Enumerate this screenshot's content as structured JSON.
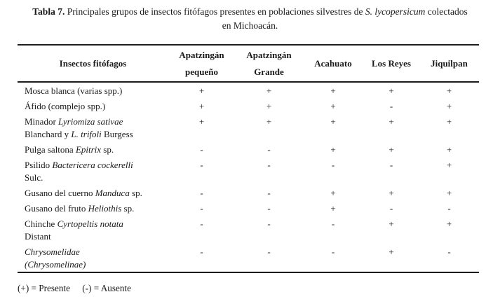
{
  "caption": {
    "line1_segments": [
      {
        "text": "Tabla 7.",
        "bold": true
      },
      {
        "text": " Principales grupos de insectos fitófagos presentes en poblaciones silvestres de "
      },
      {
        "text": "S. lycopersicum",
        "italic": true
      },
      {
        "text": " colectados"
      }
    ],
    "line2": "en Michoacán."
  },
  "table": {
    "insect_column_header": "Insectos fitófagos",
    "site_column_headers": [
      {
        "lines": [
          "Apatzingán",
          "pequeño"
        ]
      },
      {
        "lines": [
          "Apatzingán",
          "Grande"
        ]
      },
      {
        "lines": [
          "Acahuato"
        ]
      },
      {
        "lines": [
          "Los Reyes"
        ]
      },
      {
        "lines": [
          "Jiquilpan"
        ]
      }
    ],
    "rows": [
      {
        "label_segments": [
          {
            "text": "Mosca blanca (varias spp.)"
          }
        ],
        "values": [
          "+",
          "+",
          "+",
          "+",
          "+"
        ]
      },
      {
        "label_segments": [
          {
            "text": "Áfido (complejo spp.)"
          }
        ],
        "values": [
          "+",
          "+",
          "+",
          "-",
          "+"
        ]
      },
      {
        "label_segments": [
          {
            "text": "Minador "
          },
          {
            "text": "Lyriomiza sativae",
            "italic": true
          },
          {
            "break": true
          },
          {
            "text": "Blanchard y "
          },
          {
            "text": "L. trifoli",
            "italic": true
          },
          {
            "text": " Burgess"
          }
        ],
        "values": [
          "+",
          "+",
          "+",
          "+",
          "+"
        ]
      },
      {
        "label_segments": [
          {
            "text": "Pulga saltona "
          },
          {
            "text": "Epitrix",
            "italic": true
          },
          {
            "text": " sp."
          }
        ],
        "values": [
          "-",
          "-",
          "+",
          "+",
          "+"
        ]
      },
      {
        "label_segments": [
          {
            "text": "Psilido "
          },
          {
            "text": "Bactericera cockerelli",
            "italic": true
          },
          {
            "break": true
          },
          {
            "text": "Sulc."
          }
        ],
        "values": [
          "-",
          "-",
          "-",
          "-",
          "+"
        ]
      },
      {
        "label_segments": [
          {
            "text": "Gusano del cuerno "
          },
          {
            "text": "Manduca",
            "italic": true
          },
          {
            "text": " sp."
          }
        ],
        "values": [
          "-",
          "-",
          "+",
          "+",
          "+"
        ]
      },
      {
        "label_segments": [
          {
            "text": "Gusano del fruto "
          },
          {
            "text": "Heliothis",
            "italic": true
          },
          {
            "text": " sp."
          }
        ],
        "values": [
          "-",
          "-",
          "+",
          "-",
          "-"
        ]
      },
      {
        "label_segments": [
          {
            "text": "Chinche "
          },
          {
            "text": "Cyrtopeltis notata",
            "italic": true
          },
          {
            "break": true
          },
          {
            "text": "Distant"
          }
        ],
        "values": [
          "-",
          "-",
          "-",
          "+",
          "+"
        ]
      },
      {
        "label_segments": [
          {
            "text": "Chrysomelidae",
            "italic": true
          },
          {
            "break": true
          },
          {
            "text": "(Chrysomelinae)",
            "italic": true
          }
        ],
        "values": [
          "-",
          "-",
          "-",
          "+",
          "-"
        ]
      }
    ]
  },
  "legend": {
    "present": "(+) = Presente",
    "absent": "(-) = Ausente"
  },
  "colors": {
    "text": "#1a1a1a",
    "rule": "#1c1c1c",
    "background": "#ffffff"
  }
}
